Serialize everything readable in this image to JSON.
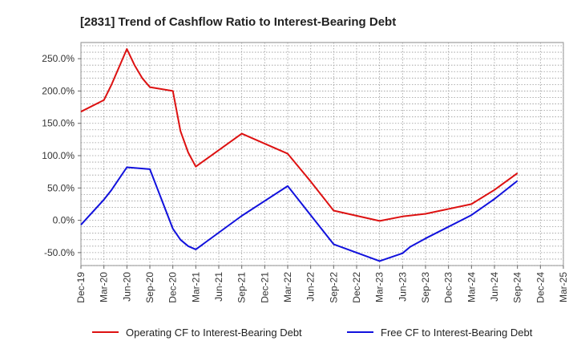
{
  "chart_data": {
    "type": "line",
    "title": "[2831]  Trend of Cashflow Ratio to Interest-Bearing Debt",
    "xlabel": "",
    "ylabel": "",
    "x_ticks": [
      "Dec-19",
      "Mar-20",
      "Jun-20",
      "Sep-20",
      "Dec-20",
      "Mar-21",
      "Jun-21",
      "Sep-21",
      "Dec-21",
      "Mar-22",
      "Jun-22",
      "Sep-22",
      "Dec-22",
      "Mar-23",
      "Jun-23",
      "Sep-23",
      "Dec-23",
      "Mar-24",
      "Jun-24",
      "Sep-24",
      "Dec-24",
      "Mar-25"
    ],
    "y_ticks": [
      {
        "value": 250,
        "label": "250.0%"
      },
      {
        "value": 200,
        "label": "200.0%"
      },
      {
        "value": 150,
        "label": "150.0%"
      },
      {
        "value": 100,
        "label": "100.0%"
      },
      {
        "value": 50,
        "label": "50.0%"
      },
      {
        "value": 0,
        "label": "0.0%"
      },
      {
        "value": -50,
        "label": "-50.0%"
      }
    ],
    "ylim": [
      -70,
      275
    ],
    "grid": true,
    "legend_position": "bottom",
    "series": [
      {
        "name": "Operating CF to Interest-Bearing Debt",
        "color": "#dd1111",
        "points": [
          {
            "x": "Dec-19",
            "y": 168
          },
          {
            "x": "Mar-20",
            "y": 186
          },
          {
            "x": "Apr-20",
            "y": 210
          },
          {
            "x": "Jun-20",
            "y": 265
          },
          {
            "x": "Jul-20",
            "y": 240
          },
          {
            "x": "Aug-20",
            "y": 220
          },
          {
            "x": "Sep-20",
            "y": 206
          },
          {
            "x": "Dec-20",
            "y": 200
          },
          {
            "x": "Jan-21",
            "y": 138
          },
          {
            "x": "Feb-21",
            "y": 105
          },
          {
            "x": "Mar-21",
            "y": 83
          },
          {
            "x": "Sep-21",
            "y": 134
          },
          {
            "x": "Mar-22",
            "y": 103
          },
          {
            "x": "Jun-22",
            "y": 60
          },
          {
            "x": "Sep-22",
            "y": 15
          },
          {
            "x": "Mar-23",
            "y": -1
          },
          {
            "x": "Jun-23",
            "y": 6
          },
          {
            "x": "Sep-23",
            "y": 10
          },
          {
            "x": "Mar-24",
            "y": 25
          },
          {
            "x": "Jun-24",
            "y": 47
          },
          {
            "x": "Sep-24",
            "y": 73
          }
        ]
      },
      {
        "name": "Free CF to Interest-Bearing Debt",
        "color": "#1111dd",
        "points": [
          {
            "x": "Dec-19",
            "y": -7
          },
          {
            "x": "Mar-20",
            "y": 32
          },
          {
            "x": "Apr-20",
            "y": 47
          },
          {
            "x": "Jun-20",
            "y": 82
          },
          {
            "x": "Sep-20",
            "y": 79
          },
          {
            "x": "Dec-20",
            "y": -13
          },
          {
            "x": "Jan-21",
            "y": -30
          },
          {
            "x": "Feb-21",
            "y": -40
          },
          {
            "x": "Mar-21",
            "y": -45
          },
          {
            "x": "Sep-21",
            "y": 7
          },
          {
            "x": "Mar-22",
            "y": 53
          },
          {
            "x": "Sep-22",
            "y": -37
          },
          {
            "x": "Mar-23",
            "y": -63
          },
          {
            "x": "Jun-23",
            "y": -51
          },
          {
            "x": "Jul-23",
            "y": -41
          },
          {
            "x": "Sep-23",
            "y": -28
          },
          {
            "x": "Mar-24",
            "y": 8
          },
          {
            "x": "Jun-24",
            "y": 33
          },
          {
            "x": "Sep-24",
            "y": 61
          }
        ]
      }
    ]
  }
}
